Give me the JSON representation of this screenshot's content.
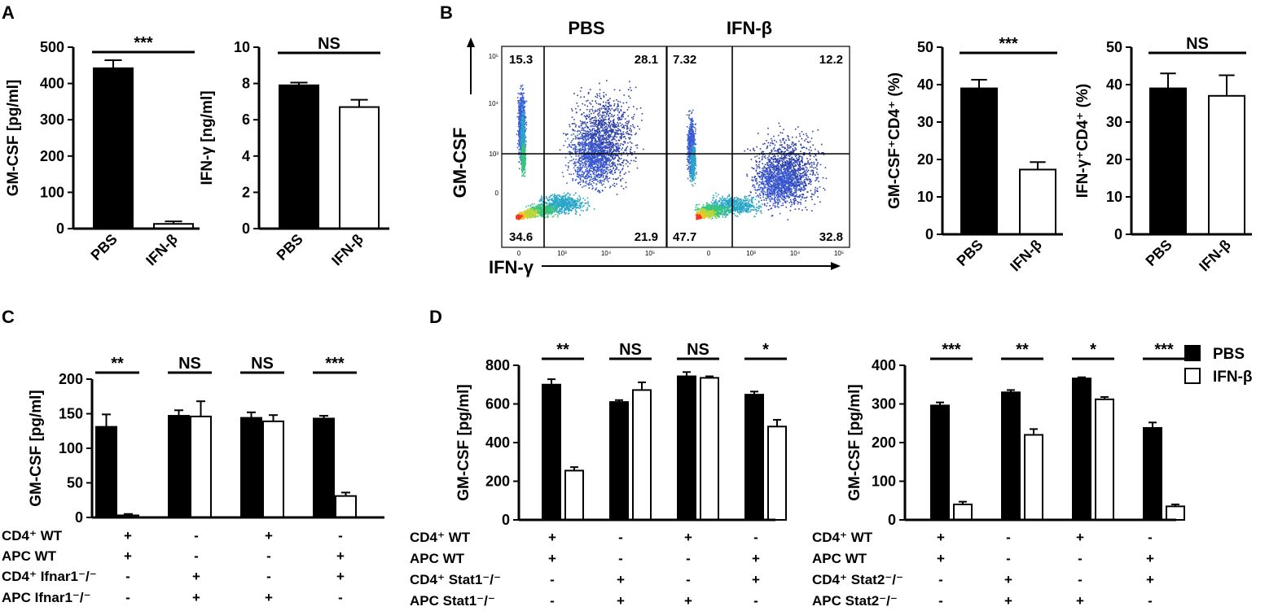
{
  "panels": {
    "A": "A",
    "B": "B",
    "C": "C",
    "D": "D"
  },
  "legend": {
    "pbs": "PBS",
    "ifnb": "IFN-β",
    "pbs_color": "#000000",
    "ifnb_color": "#ffffff"
  },
  "flow": {
    "titles": [
      "PBS",
      "IFN-β"
    ],
    "y_label": "GM-CSF",
    "x_label": "IFN-γ",
    "quadrants": [
      {
        "ul": "15.3",
        "ur": "28.1",
        "ll": "34.6",
        "lr": "21.9"
      },
      {
        "ul": "7.32",
        "ur": "12.2",
        "ll": "47.7",
        "lr": "32.8"
      }
    ],
    "x_ticks": [
      "0",
      "10³",
      "10⁴",
      "10⁵"
    ],
    "y_ticks": [
      "10⁵",
      "10⁴",
      "10³",
      "0"
    ]
  },
  "tables": {
    "C": {
      "rows": [
        {
          "label": "CD4⁺ WT",
          "values": [
            "+",
            "-",
            "+",
            "-"
          ]
        },
        {
          "label": "APC WT",
          "values": [
            "+",
            "-",
            "-",
            "+"
          ]
        },
        {
          "label": "CD4⁺ Ifnar1⁻/⁻",
          "values": [
            "-",
            "+",
            "-",
            "+"
          ]
        },
        {
          "label": "APC Ifnar1⁻/⁻",
          "values": [
            "-",
            "+",
            "+",
            "-"
          ]
        }
      ]
    },
    "D1": {
      "rows": [
        {
          "label": "CD4⁺ WT",
          "values": [
            "+",
            "-",
            "+",
            "-"
          ]
        },
        {
          "label": "APC WT",
          "values": [
            "+",
            "-",
            "-",
            "+"
          ]
        },
        {
          "label": "CD4⁺ Stat1⁻/⁻",
          "values": [
            "-",
            "+",
            "-",
            "+"
          ]
        },
        {
          "label": "APC Stat1⁻/⁻",
          "values": [
            "-",
            "+",
            "+",
            "-"
          ]
        }
      ]
    },
    "D2": {
      "rows": [
        {
          "label": "CD4⁺ WT",
          "values": [
            "+",
            "-",
            "+",
            "-"
          ]
        },
        {
          "label": "APC WT",
          "values": [
            "+",
            "-",
            "-",
            "+"
          ]
        },
        {
          "label": "CD4⁺ Stat2⁻/⁻",
          "values": [
            "-",
            "+",
            "-",
            "+"
          ]
        },
        {
          "label": "APC Stat2⁻/⁻",
          "values": [
            "-",
            "+",
            "+",
            "-"
          ]
        }
      ]
    }
  },
  "chart_data": [
    {
      "id": "A1",
      "type": "bar",
      "ylabel": "GM-CSF [pg/ml]",
      "categories": [
        "PBS",
        "IFN-β"
      ],
      "values": [
        442,
        13
      ],
      "errors": [
        22,
        7
      ],
      "ylim": [
        0,
        500
      ],
      "yticks": [
        0,
        100,
        200,
        300,
        400,
        500
      ],
      "significance": [
        "***"
      ]
    },
    {
      "id": "A2",
      "type": "bar",
      "ylabel": "IFN-γ [ng/ml]",
      "categories": [
        "PBS",
        "IFN-β"
      ],
      "values": [
        7.9,
        6.7
      ],
      "errors": [
        0.15,
        0.4
      ],
      "ylim": [
        0,
        10
      ],
      "yticks": [
        0,
        2,
        4,
        6,
        8,
        10
      ],
      "significance": [
        "NS"
      ]
    },
    {
      "id": "B1",
      "type": "bar",
      "ylabel": "GM-CSF⁺CD4⁺ (%)",
      "categories": [
        "PBS",
        "IFN-β"
      ],
      "values": [
        39,
        17.3
      ],
      "errors": [
        2.3,
        2
      ],
      "ylim": [
        0,
        50
      ],
      "yticks": [
        0,
        10,
        20,
        30,
        40,
        50
      ],
      "significance": [
        "***"
      ]
    },
    {
      "id": "B2",
      "type": "bar",
      "ylabel": "IFN-γ⁺CD4⁺ (%)",
      "categories": [
        "PBS",
        "IFN-β"
      ],
      "values": [
        39,
        37
      ],
      "errors": [
        4,
        5.5
      ],
      "ylim": [
        0,
        50
      ],
      "yticks": [
        0,
        10,
        20,
        30,
        40,
        50
      ],
      "significance": [
        "NS"
      ]
    },
    {
      "id": "C",
      "type": "bar",
      "ylabel": "GM-CSF [pg/ml]",
      "ylim": [
        0,
        200
      ],
      "yticks": [
        0,
        50,
        100,
        150,
        200
      ],
      "groups": [
        {
          "pbs": 131,
          "pbs_err": 18,
          "ifnb": 3,
          "ifnb_err": 2,
          "sig": "**"
        },
        {
          "pbs": 147,
          "pbs_err": 8,
          "ifnb": 146,
          "ifnb_err": 22,
          "sig": "NS"
        },
        {
          "pbs": 144,
          "pbs_err": 8,
          "ifnb": 139,
          "ifnb_err": 9,
          "sig": "NS"
        },
        {
          "pbs": 143,
          "pbs_err": 4,
          "ifnb": 31,
          "ifnb_err": 5,
          "sig": "***"
        }
      ]
    },
    {
      "id": "D1",
      "type": "bar",
      "ylabel": "GM-CSF [pg/ml]",
      "ylim": [
        0,
        800
      ],
      "yticks": [
        0,
        200,
        400,
        600,
        800
      ],
      "groups": [
        {
          "pbs": 700,
          "pbs_err": 28,
          "ifnb": 255,
          "ifnb_err": 18,
          "sig": "**"
        },
        {
          "pbs": 610,
          "pbs_err": 10,
          "ifnb": 672,
          "ifnb_err": 40,
          "sig": "NS"
        },
        {
          "pbs": 743,
          "pbs_err": 22,
          "ifnb": 735,
          "ifnb_err": 8,
          "sig": "NS"
        },
        {
          "pbs": 648,
          "pbs_err": 16,
          "ifnb": 483,
          "ifnb_err": 35,
          "sig": "*"
        }
      ]
    },
    {
      "id": "D2",
      "type": "bar",
      "ylabel": "GM-CSF [pg/ml]",
      "ylim": [
        0,
        400
      ],
      "yticks": [
        0,
        100,
        200,
        300,
        400
      ],
      "groups": [
        {
          "pbs": 296,
          "pbs_err": 8,
          "ifnb": 40,
          "ifnb_err": 7,
          "sig": "***"
        },
        {
          "pbs": 330,
          "pbs_err": 6,
          "ifnb": 220,
          "ifnb_err": 15,
          "sig": "**"
        },
        {
          "pbs": 366,
          "pbs_err": 3,
          "ifnb": 312,
          "ifnb_err": 6,
          "sig": "*"
        },
        {
          "pbs": 238,
          "pbs_err": 14,
          "ifnb": 35,
          "ifnb_err": 5,
          "sig": "***"
        }
      ]
    }
  ]
}
